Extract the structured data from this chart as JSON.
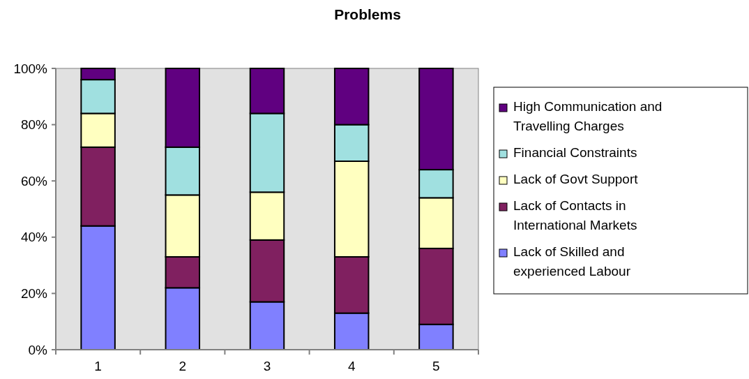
{
  "chart_data": {
    "type": "bar",
    "title": "Problems",
    "stacked": true,
    "categories": [
      "1",
      "2",
      "3",
      "4",
      "5"
    ],
    "series": [
      {
        "name": "Lack of Skilled and experienced Labour",
        "color": "#8080ff",
        "values": [
          44,
          22,
          17,
          13,
          9
        ]
      },
      {
        "name": "Lack of Contacts in International Markets",
        "color": "#802060",
        "values": [
          28,
          11,
          22,
          20,
          27
        ]
      },
      {
        "name": "Lack of Govt Support",
        "color": "#ffffc0",
        "values": [
          12,
          22,
          17,
          34,
          18
        ]
      },
      {
        "name": "Financial Constraints",
        "color": "#a0e0e0",
        "values": [
          12,
          17,
          28,
          13,
          10
        ]
      },
      {
        "name": "High Communication and Travelling Charges",
        "color": "#600080",
        "values": [
          4,
          28,
          16,
          20,
          36
        ]
      }
    ],
    "ylim": [
      0,
      100
    ],
    "yticks": [
      {
        "value": 0,
        "label": "0%"
      },
      {
        "value": 20,
        "label": "20%"
      },
      {
        "value": 40,
        "label": "40%"
      },
      {
        "value": 60,
        "label": "60%"
      },
      {
        "value": 80,
        "label": "80%"
      },
      {
        "value": 100,
        "label": "100%"
      }
    ],
    "grid": false,
    "legend": "right"
  }
}
